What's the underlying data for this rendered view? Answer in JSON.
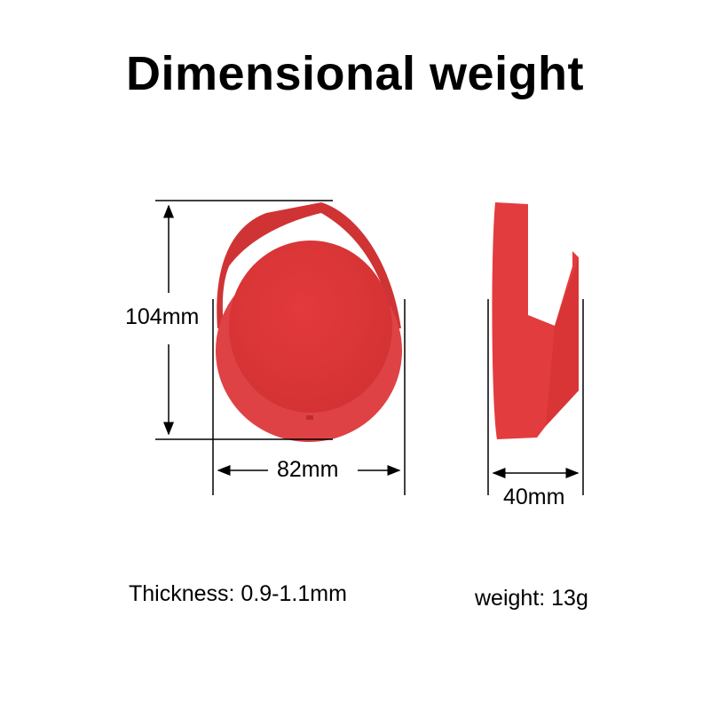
{
  "title": "Dimensional weight",
  "dimensions": {
    "height": "104mm",
    "width": "82mm",
    "depth": "40mm"
  },
  "specs": {
    "thickness": "Thickness: 0.9-1.1mm",
    "weight": "weight: 13g"
  },
  "colors": {
    "product": "#e0393b",
    "product_dark": "#c92f30"
  }
}
